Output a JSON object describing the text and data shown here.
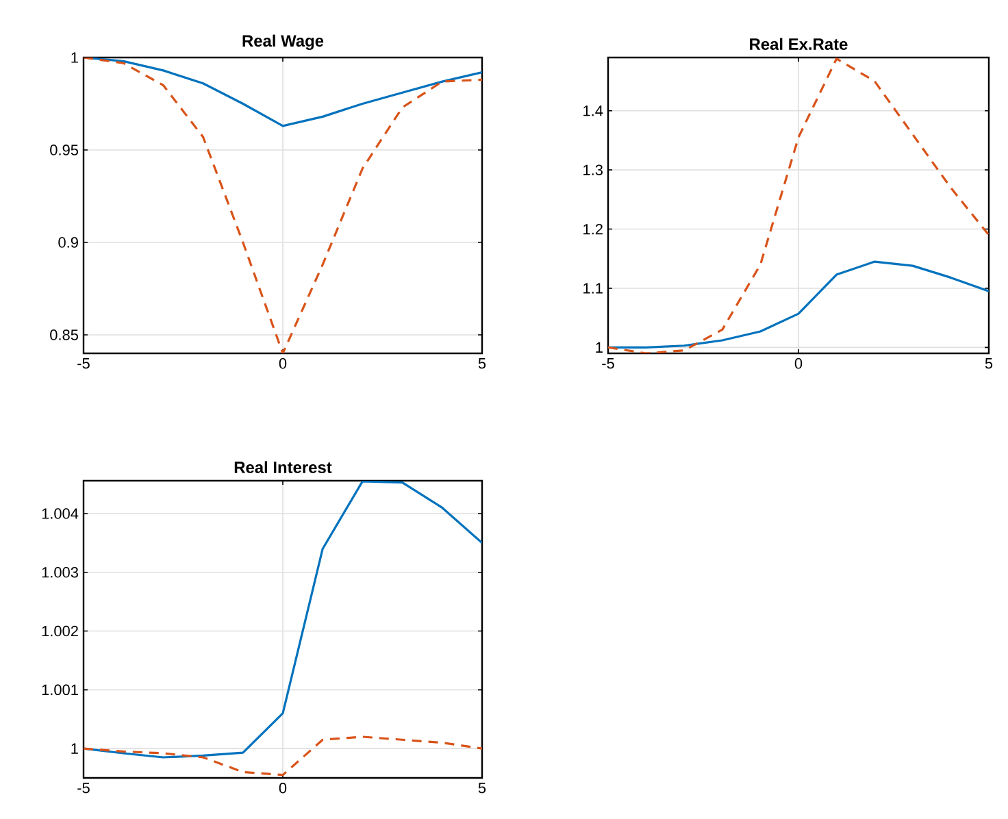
{
  "chart_data": [
    {
      "type": "line",
      "title": "Real Wage",
      "x": [
        -5,
        -4,
        -3,
        -2,
        -1,
        0,
        1,
        2,
        3,
        4,
        5
      ],
      "xlim": [
        -5,
        5
      ],
      "xticks": [
        -5,
        0,
        5
      ],
      "ylim": [
        0.84,
        1
      ],
      "yticks": [
        0.85,
        0.9,
        0.95,
        1
      ],
      "grid": true,
      "series": [
        {
          "color": "#0072bd",
          "line_style": "solid",
          "values": [
            1.0,
            0.998,
            0.993,
            0.986,
            0.975,
            0.963,
            0.968,
            0.975,
            0.981,
            0.987,
            0.992
          ]
        },
        {
          "color": "#d95319",
          "line_style": "dashed",
          "values": [
            1.0,
            0.997,
            0.985,
            0.957,
            0.9,
            0.84,
            0.888,
            0.94,
            0.973,
            0.987,
            0.988
          ]
        }
      ]
    },
    {
      "type": "line",
      "title": "Real Ex.Rate",
      "x": [
        -5,
        -4,
        -3,
        -2,
        -1,
        0,
        1,
        2,
        3,
        4,
        5
      ],
      "xlim": [
        -5,
        5
      ],
      "xticks": [
        -5,
        0,
        5
      ],
      "ylim": [
        0.99,
        1.49
      ],
      "yticks": [
        1,
        1.1,
        1.2,
        1.3,
        1.4
      ],
      "grid": true,
      "series": [
        {
          "color": "#0072bd",
          "line_style": "solid",
          "values": [
            1.0,
            1.0,
            1.003,
            1.012,
            1.027,
            1.057,
            1.123,
            1.145,
            1.138,
            1.118,
            1.095
          ]
        },
        {
          "color": "#d95319",
          "line_style": "dashed",
          "values": [
            1.0,
            0.99,
            0.995,
            1.03,
            1.14,
            1.355,
            1.488,
            1.45,
            1.36,
            1.27,
            1.19
          ]
        }
      ]
    },
    {
      "type": "line",
      "title": "Real Interest",
      "x": [
        -5,
        -4,
        -3,
        -2,
        -1,
        0,
        1,
        2,
        3,
        4,
        5
      ],
      "xlim": [
        -5,
        5
      ],
      "xticks": [
        -5,
        0,
        5
      ],
      "ylim": [
        0.9995,
        1.00456
      ],
      "yticks": [
        1,
        1.001,
        1.002,
        1.003,
        1.004
      ],
      "grid": true,
      "series": [
        {
          "color": "#0072bd",
          "line_style": "solid",
          "values": [
            1.0,
            0.99992,
            0.99985,
            0.99988,
            0.99993,
            1.0006,
            1.0034,
            1.00455,
            1.00453,
            1.0041,
            1.0035
          ]
        },
        {
          "color": "#d95319",
          "line_style": "dashed",
          "values": [
            1.0,
            0.99995,
            0.99992,
            0.99985,
            0.9996,
            0.99955,
            1.00015,
            1.0002,
            1.00015,
            1.0001,
            1.0
          ]
        }
      ]
    }
  ]
}
